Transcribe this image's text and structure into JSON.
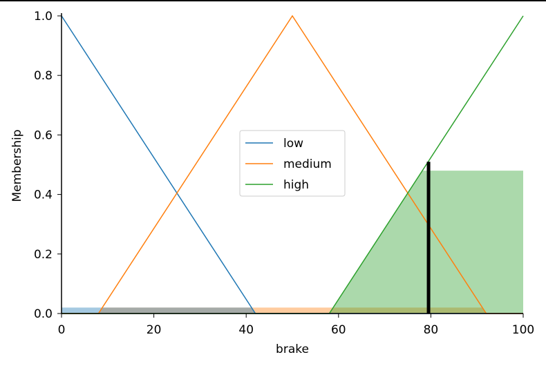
{
  "chart_data": {
    "type": "line",
    "xlabel": "brake",
    "ylabel": "Membership",
    "xlim": [
      0,
      100
    ],
    "ylim": [
      0,
      1
    ],
    "xticks": [
      "0",
      "20",
      "40",
      "60",
      "80",
      "100"
    ],
    "yticks": [
      "0.0",
      "0.2",
      "0.4",
      "0.6",
      "0.8",
      "1.0"
    ],
    "grid": false,
    "legend_position": "center",
    "series": [
      {
        "name": "low",
        "color": "#1f77b4",
        "x": [
          0,
          42,
          100
        ],
        "y": [
          1,
          0,
          0
        ],
        "fill_level": 0.02
      },
      {
        "name": "medium",
        "color": "#ff7f0e",
        "x": [
          0,
          8,
          50,
          92,
          100
        ],
        "y": [
          0,
          0,
          1,
          0,
          0
        ],
        "fill_level": 0.02
      },
      {
        "name": "high",
        "color": "#2ca02c",
        "x": [
          0,
          58,
          100
        ],
        "y": [
          0,
          0,
          1
        ],
        "fill_level": 0.48
      }
    ],
    "output_marker": {
      "x": 79.5,
      "y": 0.51,
      "color": "#000000"
    }
  }
}
